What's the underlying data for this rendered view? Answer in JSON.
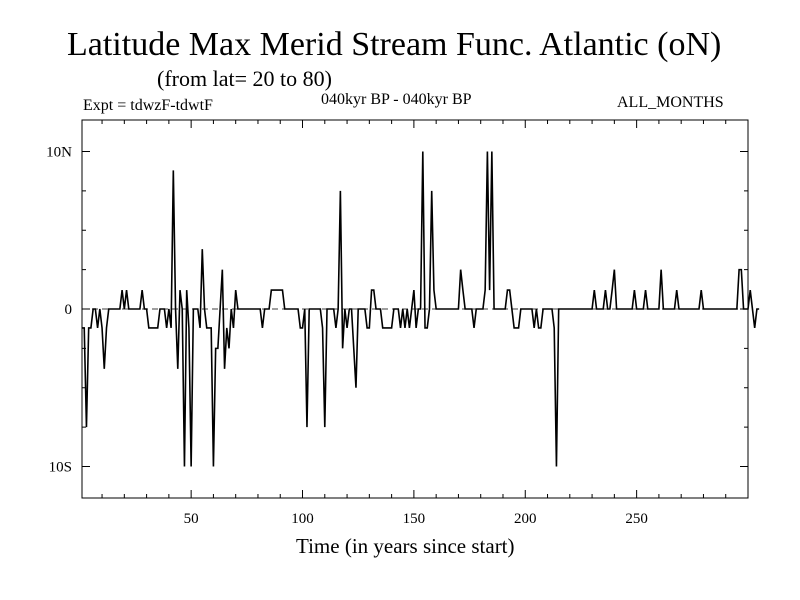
{
  "header": {
    "title": "Latitude Max Merid Stream Func. Atlantic (oN)",
    "subtitle": "(from lat= 20 to 80)",
    "expt": "Expt = tdwzF-tdwtF",
    "period": "040kyr BP - 040kyr BP",
    "months": "ALL_MONTHS"
  },
  "chart_data": {
    "type": "line",
    "title": "Latitude Max Merid Stream Func. Atlantic (oN)",
    "xlabel": "Time (in years since start)",
    "ylabel": "",
    "xlim": [
      1,
      300
    ],
    "ylim": [
      -12,
      12
    ],
    "x_ticks": [
      {
        "value": 50,
        "label": "50"
      },
      {
        "value": 100,
        "label": "100"
      },
      {
        "value": 150,
        "label": "150"
      },
      {
        "value": 200,
        "label": "200"
      },
      {
        "value": 250,
        "label": "250"
      }
    ],
    "y_ticks": [
      {
        "value": 10,
        "label": "10N"
      },
      {
        "value": 0,
        "label": "0"
      },
      {
        "value": -10,
        "label": "10S"
      }
    ],
    "zero_line": true,
    "series": [
      {
        "values": [
          -1.2,
          -1.2,
          -7.5,
          -1.2,
          -1.2,
          0,
          0,
          -1.2,
          0,
          -1.2,
          -3.8,
          -1.2,
          0,
          0,
          0,
          0,
          0,
          0,
          1.2,
          0,
          1.2,
          0,
          0,
          0,
          0,
          0,
          0,
          1.2,
          0,
          0,
          -1.2,
          -1.2,
          -1.2,
          -1.2,
          -1.2,
          0,
          0,
          0,
          -1.2,
          0,
          -1.2,
          8.8,
          0,
          -3.8,
          1.2,
          0,
          -10,
          1.2,
          -1.2,
          -10,
          0,
          0,
          0,
          -1.2,
          3.8,
          0,
          -1.2,
          -1.2,
          -1.2,
          -10,
          -2.5,
          -2.5,
          0,
          2.5,
          -3.8,
          -1.2,
          -2.5,
          0,
          -1.2,
          1.2,
          0,
          0,
          0,
          0,
          0,
          0,
          0,
          0,
          0,
          0,
          0,
          -1.2,
          0,
          0,
          0,
          1.2,
          1.2,
          1.2,
          1.2,
          1.2,
          1.2,
          0,
          0,
          0,
          0,
          0,
          0,
          0,
          -1.2,
          -1.2,
          0,
          -7.5,
          0,
          0,
          0,
          0,
          0,
          0,
          -1.2,
          -7.5,
          0,
          0,
          0,
          0,
          -1.2,
          0,
          7.5,
          -2.5,
          0,
          -1.2,
          0,
          0,
          -2.5,
          -5,
          0,
          0,
          0,
          0,
          -1.2,
          -1.2,
          1.2,
          1.2,
          0,
          0,
          0,
          -1.2,
          -1.2,
          -1.2,
          -1.2,
          -1.2,
          0,
          0,
          0,
          -1.2,
          0,
          -1.2,
          0,
          -1.2,
          0,
          1.2,
          -1.2,
          0,
          0,
          10,
          -1.2,
          -1.2,
          0,
          7.5,
          1.2,
          0,
          0,
          0,
          0,
          0,
          0,
          0,
          0,
          0,
          0,
          0,
          2.5,
          1.2,
          0,
          0,
          0,
          0,
          -1.2,
          0,
          0,
          0,
          0,
          1.2,
          10,
          1.2,
          10,
          0,
          0,
          0,
          0,
          0,
          0,
          1.2,
          1.2,
          0,
          -1.2,
          -1.2,
          -1.2,
          0,
          0,
          0,
          0,
          0,
          0,
          -1.2,
          0,
          -1.2,
          -1.2,
          0,
          0,
          0,
          0,
          0,
          -1.2,
          -10,
          0,
          0,
          0,
          0,
          0,
          0,
          0,
          0,
          0,
          0,
          0,
          0,
          0,
          0,
          0,
          0,
          1.2,
          0,
          0,
          0,
          0,
          1.2,
          0,
          0,
          1.2,
          2.5,
          0,
          0,
          0,
          0,
          0,
          0,
          0,
          0,
          1.2,
          0,
          0,
          0,
          0,
          1.2,
          0,
          0,
          0,
          0,
          0,
          0,
          2.5,
          0,
          0,
          0,
          0,
          0,
          0,
          1.2,
          0,
          0,
          0,
          0,
          0,
          0,
          0,
          0,
          0,
          0,
          1.2,
          0,
          0,
          0,
          0,
          0,
          0,
          0,
          0,
          0,
          0,
          0,
          0,
          0,
          0,
          0,
          0,
          2.5,
          2.5,
          0,
          0,
          0,
          1.2,
          0,
          -1.2,
          0,
          0
        ]
      }
    ]
  }
}
